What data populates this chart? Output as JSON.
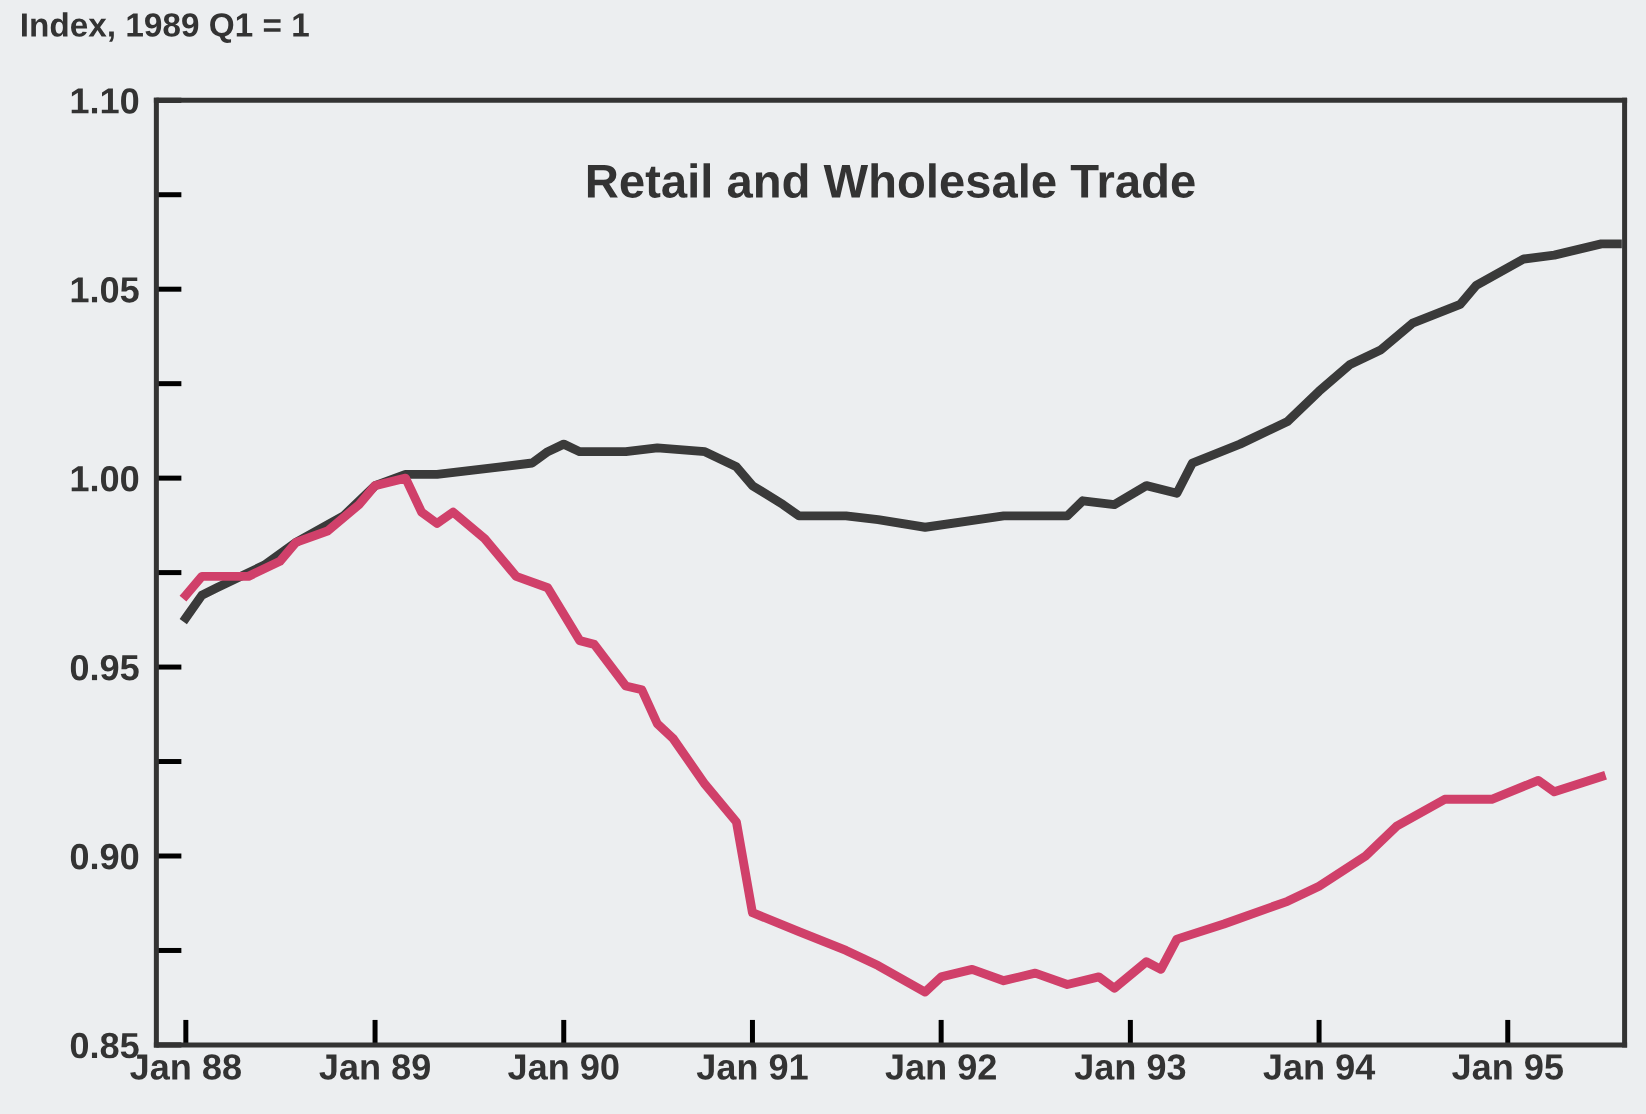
{
  "chart_data": {
    "type": "line",
    "title": "Retail and Wholesale Trade",
    "ylabel": "Index, 1989 Q1 = 1",
    "xlim": [
      "1987-11-05",
      "1995-08-15"
    ],
    "ylim": [
      0.85,
      1.1
    ],
    "xticks": [
      {
        "value": "1988-01",
        "label": "Jan 88"
      },
      {
        "value": "1989-01",
        "label": "Jan 89"
      },
      {
        "value": "1990-01",
        "label": "Jan 90"
      },
      {
        "value": "1991-01",
        "label": "Jan 91"
      },
      {
        "value": "1992-01",
        "label": "Jan 92"
      },
      {
        "value": "1993-01",
        "label": "Jan 93"
      },
      {
        "value": "1994-01",
        "label": "Jan 94"
      },
      {
        "value": "1995-01",
        "label": "Jan 95"
      }
    ],
    "yticks": [
      {
        "value": 0.85,
        "label": "0.85"
      },
      {
        "value": 0.875,
        "label": null
      },
      {
        "value": 0.9,
        "label": "0.90"
      },
      {
        "value": 0.925,
        "label": null
      },
      {
        "value": 0.95,
        "label": "0.95"
      },
      {
        "value": 0.975,
        "label": null
      },
      {
        "value": 1.0,
        "label": "1.00"
      },
      {
        "value": 1.025,
        "label": null
      },
      {
        "value": 1.05,
        "label": "1.05"
      },
      {
        "value": 1.075,
        "label": null
      },
      {
        "value": 1.1,
        "label": "1.10"
      }
    ],
    "grid": false,
    "legend": false,
    "marker": "none",
    "line_style": "solid",
    "series": [
      {
        "color": "#3a3a3a",
        "x": [
          "1988-01",
          "1988-02",
          "1988-03",
          "1988-06",
          "1988-08",
          "1988-11",
          "1989-01",
          "1989-03",
          "1989-05",
          "1989-09",
          "1989-11",
          "1989-12",
          "1990-01",
          "1990-02",
          "1990-05",
          "1990-07",
          "1990-10",
          "1990-12",
          "1991-01",
          "1991-03",
          "1991-04",
          "1991-07",
          "1991-09",
          "1991-12",
          "1992-05",
          "1992-09",
          "1992-10",
          "1992-12",
          "1993-02",
          "1993-04",
          "1993-05",
          "1993-08",
          "1993-11",
          "1994-01",
          "1994-03",
          "1994-05",
          "1994-07",
          "1994-10",
          "1994-11",
          "1995-02",
          "1995-04",
          "1995-07",
          "1995-08"
        ],
        "values": [
          0.963,
          0.969,
          0.971,
          0.977,
          0.983,
          0.99,
          0.998,
          1.001,
          1.001,
          1.003,
          1.004,
          1.007,
          1.009,
          1.007,
          1.007,
          1.008,
          1.007,
          1.003,
          0.998,
          0.993,
          0.99,
          0.99,
          0.989,
          0.987,
          0.99,
          0.99,
          0.994,
          0.993,
          0.998,
          0.996,
          1.004,
          1.009,
          1.015,
          1.023,
          1.03,
          1.034,
          1.041,
          1.046,
          1.051,
          1.058,
          1.059,
          1.062,
          1.062
        ]
      },
      {
        "color": "#d0406a",
        "x": [
          "1988-01",
          "1988-02",
          "1988-03",
          "1988-05",
          "1988-07",
          "1988-08",
          "1988-10",
          "1988-12",
          "1989-01",
          "1989-03",
          "1989-04",
          "1989-05",
          "1989-06",
          "1989-08",
          "1989-10",
          "1989-12",
          "1990-02",
          "1990-03",
          "1990-05",
          "1990-06",
          "1990-07",
          "1990-08",
          "1990-10",
          "1990-12",
          "1991-01",
          "1991-04",
          "1991-07",
          "1991-09",
          "1991-12",
          "1992-01",
          "1992-03",
          "1992-05",
          "1992-07",
          "1992-09",
          "1992-11",
          "1992-12",
          "1993-02",
          "1993-03",
          "1993-04",
          "1993-07",
          "1993-11",
          "1994-01",
          "1994-04",
          "1994-06",
          "1994-09",
          "1994-12",
          "1995-03",
          "1995-04",
          "1995-07"
        ],
        "values": [
          0.969,
          0.974,
          0.974,
          0.974,
          0.978,
          0.983,
          0.986,
          0.993,
          0.998,
          1.0,
          0.991,
          0.988,
          0.991,
          0.984,
          0.974,
          0.971,
          0.957,
          0.956,
          0.945,
          0.944,
          0.935,
          0.931,
          0.919,
          0.909,
          0.885,
          0.88,
          0.875,
          0.871,
          0.864,
          0.868,
          0.87,
          0.867,
          0.869,
          0.866,
          0.868,
          0.865,
          0.872,
          0.87,
          0.878,
          0.882,
          0.888,
          0.892,
          0.9,
          0.908,
          0.915,
          0.915,
          0.92,
          0.917,
          0.921
        ]
      }
    ]
  }
}
